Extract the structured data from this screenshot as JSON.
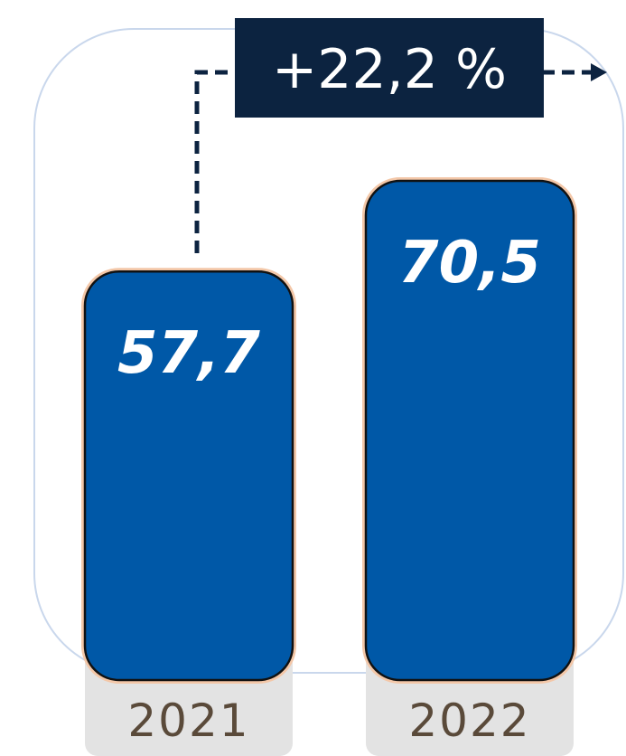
{
  "chart_data": {
    "type": "bar",
    "categories": [
      "2021",
      "2022"
    ],
    "values": [
      57.7,
      70.5
    ],
    "value_labels": [
      "57,7",
      "70,5"
    ],
    "title": "",
    "xlabel": "",
    "ylabel": "",
    "annotation": "+22,2 %",
    "colors": {
      "bar": "#0058a7",
      "bar_outline": "#111111",
      "annotation_box": "#0c2340",
      "category_box": "#e3e3e3",
      "category_text": "#5a4a3a",
      "panel_border": "#c9d7ec",
      "arrow": "#0c2340"
    }
  }
}
